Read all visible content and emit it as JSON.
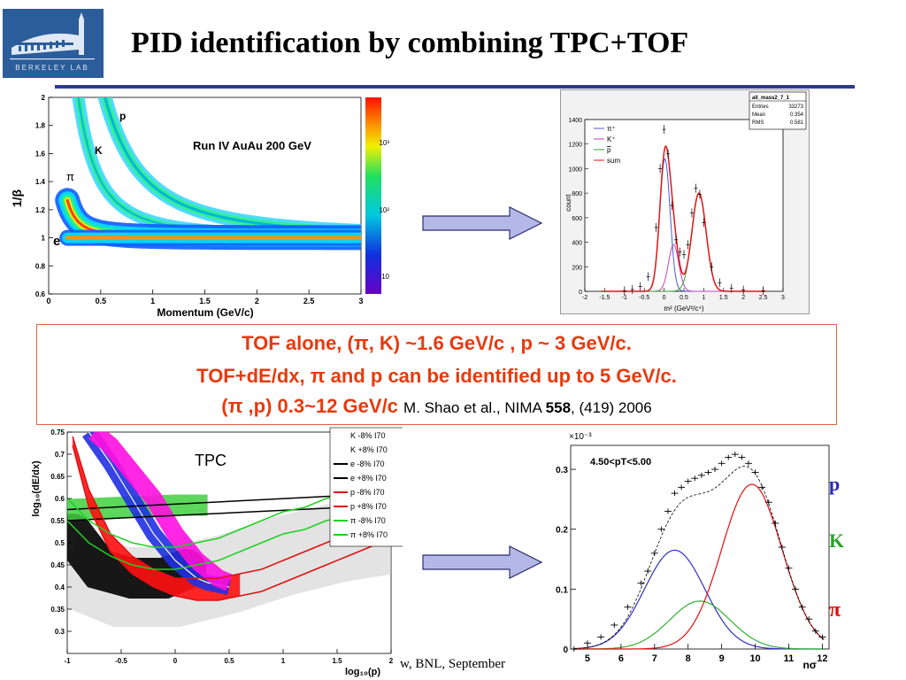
{
  "slide": {
    "title": "PID identification by combining TPC+TOF",
    "logo_text": "BERKELEY LAB",
    "footer_text": "w, BNL, September"
  },
  "summary": {
    "line1": "TOF alone, (π, K) ~1.6 GeV/c , p ~ 3 GeV/c.",
    "line2": "TOF+dE/dx, π and p can be identified up to 5 GeV/c.",
    "line3_bold": "(π ,p)  0.3~12 GeV/c",
    "ref_authors": "M. Shao et al., NIMA ",
    "ref_volume": "558",
    "ref_rest": ", (419) 2006"
  },
  "colors": {
    "title_rule": "#2b3a91",
    "summary_text": "#e8390e",
    "summary_border": "#e06040",
    "arrow_fill": "#b4b8e6",
    "proton_label": "#2929b8",
    "kaon_label": "#2aa12a",
    "pion_label": "#e01010"
  },
  "chart_data": [
    {
      "type": "heatmap",
      "annotation": "Run IV AuAu 200 GeV",
      "xlabel": "Momentum (GeV/c)",
      "ylabel": "1/β",
      "xlim": [
        0,
        3
      ],
      "ylim": [
        0.6,
        2
      ],
      "xticks": [
        "0",
        "0.5",
        "1",
        "1.5",
        "2",
        "2.5",
        "3"
      ],
      "yticks": [
        "0.6",
        "0.8",
        "1",
        "1.2",
        "1.4",
        "1.6",
        "1.8",
        "2"
      ],
      "colorbar_ticks": [
        "10",
        "10²",
        "10³"
      ],
      "band_labels": [
        "p",
        "K",
        "π",
        "e"
      ],
      "bands": [
        {
          "name": "p",
          "mass": 0.938
        },
        {
          "name": "K",
          "mass": 0.494
        },
        {
          "name": "π",
          "mass": 0.14
        },
        {
          "name": "e",
          "mass": 0.0005
        }
      ]
    },
    {
      "type": "line",
      "stats_box": {
        "name": "all_mass2_7_1",
        "entries": "33273",
        "mean": "0.354",
        "rms": "0.581"
      },
      "stats_labels": [
        "Entries",
        "Mean",
        "RMS"
      ],
      "xlabel": "m² (GeV²/c⁴)",
      "ylabel": "count",
      "xlim": [
        -2,
        3
      ],
      "ylim": [
        0,
        1400
      ],
      "xticks": [
        "-2",
        "-1.5",
        "-1",
        "-0.5",
        "0",
        "0.5",
        "1",
        "1.5",
        "2",
        "2.5",
        "3"
      ],
      "yticks": [
        "0",
        "200",
        "400",
        "600",
        "800",
        "1000",
        "1200",
        "1400"
      ],
      "legend": [
        "π⁺",
        "K⁺",
        "p",
        "sum"
      ],
      "series": [
        {
          "name": "π⁺",
          "color": "#4b5bd8",
          "mu": 0.02,
          "sigma": 0.13,
          "amp": 1080
        },
        {
          "name": "K⁺",
          "color": "#c040c0",
          "mu": 0.24,
          "sigma": 0.13,
          "amp": 380
        },
        {
          "name": "p",
          "color": "#35a035",
          "mu": 0.88,
          "sigma": 0.18,
          "amp": 800
        },
        {
          "name": "sum",
          "color": "#e01515"
        }
      ],
      "data_points": {
        "x": [
          -1.0,
          -0.8,
          -0.6,
          -0.4,
          -0.2,
          -0.1,
          0.0,
          0.1,
          0.2,
          0.3,
          0.4,
          0.5,
          0.6,
          0.7,
          0.8,
          0.9,
          1.0,
          1.2,
          1.4,
          1.7,
          2.0,
          2.5
        ],
        "y": [
          5,
          15,
          40,
          120,
          520,
          1000,
          1320,
          1120,
          700,
          420,
          320,
          300,
          380,
          640,
          840,
          790,
          560,
          200,
          70,
          25,
          10,
          5
        ]
      }
    },
    {
      "type": "scatter",
      "annotation": "TPC",
      "xlabel": "log₁₀(p)",
      "ylabel": "log₁₀(dE/dx)",
      "xlim": [
        -1,
        2
      ],
      "ylim": [
        0.25,
        0.75
      ],
      "xticks": [
        "-1",
        "-0.5",
        "0",
        "0.5",
        "1",
        "1.5",
        "2"
      ],
      "yticks": [
        "0.3",
        "0.35",
        "0.4",
        "0.45",
        "0.5",
        "0.55",
        "0.6",
        "0.65",
        "0.7",
        "0.75"
      ],
      "legend": [
        {
          "label": "K -8%  I70",
          "color": "#ffffff"
        },
        {
          "label": "K +8%  I70",
          "color": "#ffffff"
        },
        {
          "label": "e -8%  I70",
          "color": "#000000"
        },
        {
          "label": "e +8%  I70",
          "color": "#000000"
        },
        {
          "label": "p -8%  I70",
          "color": "#e01010"
        },
        {
          "label": "p +8%  I70",
          "color": "#e01010"
        },
        {
          "label": "π -8%  I70",
          "color": "#20d020"
        },
        {
          "label": "π +8%  I70",
          "color": "#20d020"
        }
      ],
      "curves": {
        "e_minus": {
          "x": [
            -1,
            2
          ],
          "y": [
            0.575,
            0.612
          ]
        },
        "e_plus": {
          "x": [
            -1,
            2
          ],
          "y": [
            0.55,
            0.585
          ]
        },
        "p_minus": {
          "x": [
            -0.95,
            -0.8,
            -0.6,
            -0.4,
            -0.2,
            0,
            0.2,
            0.4,
            0.6,
            0.8,
            1.0,
            1.2,
            1.4,
            1.6,
            1.8,
            2.0
          ],
          "y": [
            0.72,
            0.58,
            0.48,
            0.43,
            0.4,
            0.38,
            0.37,
            0.37,
            0.38,
            0.39,
            0.41,
            0.43,
            0.45,
            0.47,
            0.49,
            0.51
          ]
        },
        "p_plus": {
          "x": [
            -0.95,
            -0.8,
            -0.6,
            -0.4,
            -0.2,
            0,
            0.2,
            0.4,
            0.6,
            0.8,
            1.0,
            1.2,
            1.4,
            1.6,
            1.8,
            2.0
          ],
          "y": [
            0.74,
            0.62,
            0.52,
            0.47,
            0.44,
            0.42,
            0.42,
            0.42,
            0.43,
            0.44,
            0.46,
            0.48,
            0.5,
            0.52,
            0.53,
            0.55
          ]
        },
        "pi_minus": {
          "x": [
            -1,
            -0.8,
            -0.6,
            -0.4,
            -0.2,
            0,
            0.2,
            0.4,
            0.6,
            0.8,
            1.0,
            1.2,
            1.4,
            1.6,
            1.8,
            2.0
          ],
          "y": [
            0.55,
            0.5,
            0.47,
            0.45,
            0.44,
            0.44,
            0.45,
            0.46,
            0.48,
            0.5,
            0.52,
            0.53,
            0.55,
            0.56,
            0.57,
            0.58
          ]
        },
        "pi_plus": {
          "x": [
            -1,
            -0.8,
            -0.6,
            -0.4,
            -0.2,
            0,
            0.2,
            0.4,
            0.6,
            0.8,
            1.0,
            1.2,
            1.4,
            1.6,
            1.8,
            2.0
          ],
          "y": [
            0.6,
            0.55,
            0.52,
            0.5,
            0.49,
            0.49,
            0.5,
            0.51,
            0.53,
            0.55,
            0.57,
            0.58,
            0.6,
            0.61,
            0.62,
            0.63
          ]
        },
        "k_band": {
          "x": [
            -0.8,
            -0.6,
            -0.4,
            -0.2,
            -0.1,
            0,
            0.1,
            0.2,
            0.3,
            0.4,
            0.5
          ],
          "y": [
            0.75,
            0.68,
            0.6,
            0.52,
            0.49,
            0.46,
            0.44,
            0.42,
            0.41,
            0.405,
            0.4
          ]
        },
        "p_band": {
          "x": [
            -0.75,
            -0.6,
            -0.4,
            -0.3,
            -0.2,
            -0.1,
            0,
            0.1,
            0.2,
            0.3,
            0.4,
            0.5
          ],
          "y": [
            0.75,
            0.72,
            0.66,
            0.63,
            0.6,
            0.56,
            0.52,
            0.49,
            0.46,
            0.44,
            0.42,
            0.41
          ]
        }
      }
    },
    {
      "type": "line",
      "annotation": "4.50<pT<5.00",
      "exponent_label": "×10⁻³",
      "xlabel": "nσ",
      "xlim": [
        4.5,
        12.2
      ],
      "ylim": [
        0,
        0.34
      ],
      "xticks": [
        "5",
        "6",
        "7",
        "8",
        "9",
        "10",
        "11",
        "12"
      ],
      "yticks": [
        "0",
        "0.1",
        "0.2",
        "0.3"
      ],
      "peak_labels": [
        "p",
        "K",
        "π"
      ],
      "series": [
        {
          "name": "p",
          "color": "#3030c0",
          "mu": 7.6,
          "sigma": 0.9,
          "amp": 0.165
        },
        {
          "name": "K",
          "color": "#30b030",
          "mu": 8.35,
          "sigma": 0.9,
          "amp": 0.08
        },
        {
          "name": "π",
          "color": "#e01010",
          "mu": 9.9,
          "sigma": 0.9,
          "amp": 0.275
        }
      ],
      "data_points": {
        "x": [
          4.6,
          5.0,
          5.4,
          5.8,
          6.2,
          6.6,
          6.8,
          7.0,
          7.2,
          7.4,
          7.6,
          7.8,
          8.0,
          8.2,
          8.4,
          8.6,
          8.8,
          9.0,
          9.2,
          9.4,
          9.6,
          9.8,
          10.0,
          10.2,
          10.4,
          10.6,
          10.8,
          11.0,
          11.2,
          11.4,
          11.6,
          11.8,
          12.0
        ],
        "y": [
          0.0,
          0.01,
          0.02,
          0.04,
          0.07,
          0.11,
          0.13,
          0.16,
          0.2,
          0.23,
          0.26,
          0.27,
          0.28,
          0.285,
          0.29,
          0.295,
          0.3,
          0.31,
          0.32,
          0.325,
          0.32,
          0.31,
          0.295,
          0.27,
          0.245,
          0.21,
          0.17,
          0.135,
          0.1,
          0.07,
          0.05,
          0.03,
          0.02
        ]
      }
    }
  ]
}
